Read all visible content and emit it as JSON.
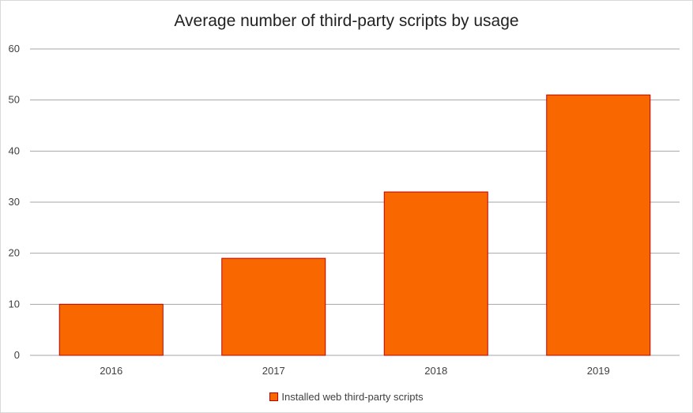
{
  "chart_data": {
    "type": "bar",
    "title": "Average number of third-party scripts by usage",
    "xlabel": "",
    "ylabel": "",
    "categories": [
      "2016",
      "2017",
      "2018",
      "2019"
    ],
    "series": [
      {
        "name": "Installed web third-party scripts",
        "values": [
          10,
          19,
          32,
          51
        ]
      }
    ],
    "ylim": [
      0,
      60
    ],
    "yticks": [
      0,
      10,
      20,
      30,
      40,
      50,
      60
    ],
    "grid": true,
    "legend_position": "bottom",
    "colors": {
      "bar_fill": "#f96800",
      "bar_stroke": "#c00000",
      "grid": "#a6a6a6"
    }
  }
}
